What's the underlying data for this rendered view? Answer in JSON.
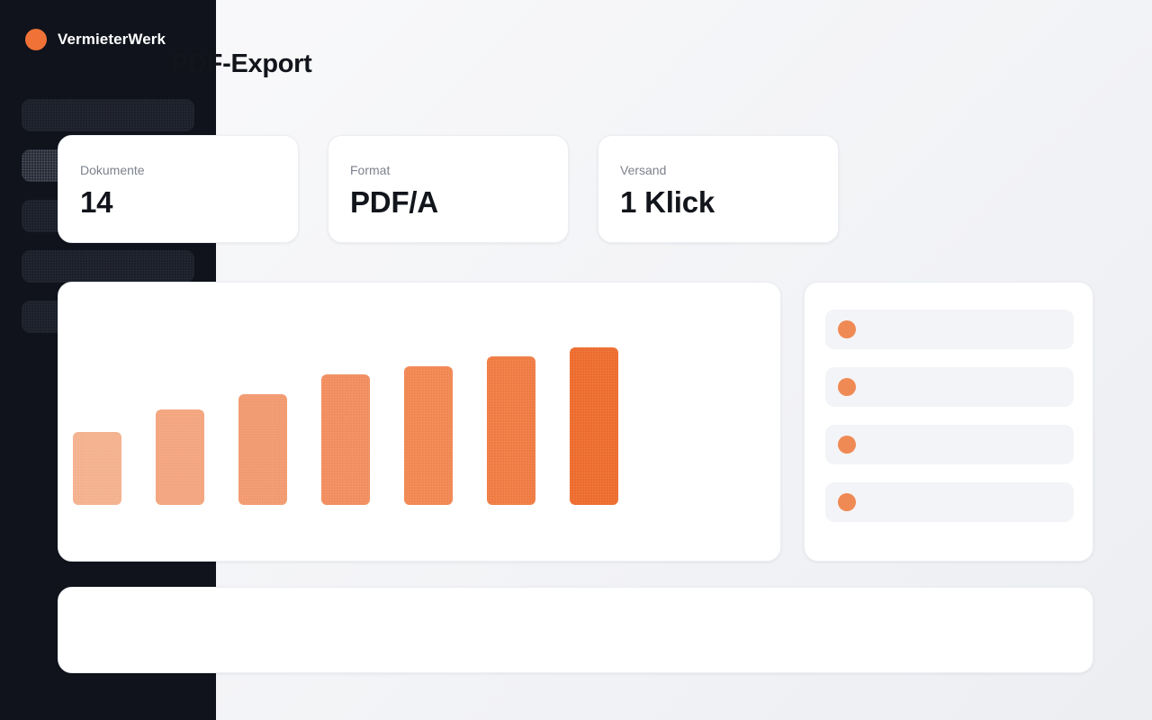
{
  "app": {
    "brand": "VermieterWerk",
    "accent_color": "#f07236"
  },
  "page": {
    "title": "PDF-Export"
  },
  "sidebar": {
    "items": [
      {
        "active": false
      },
      {
        "active": true
      },
      {
        "active": false
      },
      {
        "active": false
      },
      {
        "active": false
      }
    ]
  },
  "stats": [
    {
      "label": "Dokumente",
      "value": "14"
    },
    {
      "label": "Format",
      "value": "PDF/A"
    },
    {
      "label": "Versand",
      "value": "1 Klick"
    }
  ],
  "chart_data": {
    "type": "bar",
    "categories": [
      "",
      "",
      "",
      "",
      "",
      "",
      ""
    ],
    "values": [
      75,
      98,
      114,
      134,
      143,
      153,
      162
    ],
    "ylim": [
      0,
      200
    ],
    "grid": false,
    "colors": [
      "#f4b08d",
      "#f3a47d",
      "#f2996e",
      "#f18c5c",
      "#f18650",
      "#ef7a41",
      "#ed6b2c"
    ]
  },
  "side_list": {
    "items": [
      {
        "dot_color": "#f08a55"
      },
      {
        "dot_color": "#f08a55"
      },
      {
        "dot_color": "#f08a55"
      },
      {
        "dot_color": "#f08a55"
      }
    ]
  }
}
